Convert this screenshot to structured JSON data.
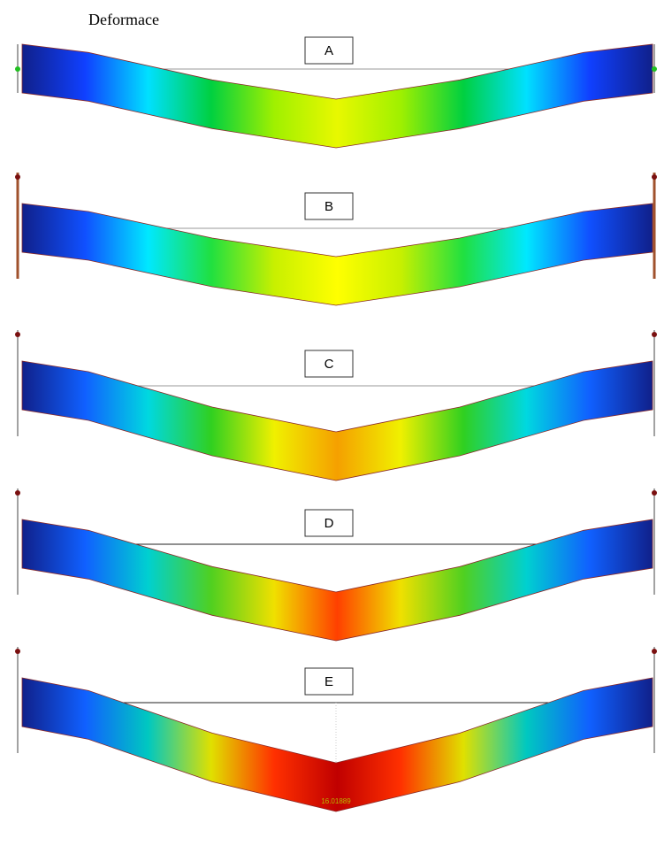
{
  "title": "Deformace",
  "panels": [
    {
      "label": "A"
    },
    {
      "label": "B"
    },
    {
      "label": "C"
    },
    {
      "label": "D"
    },
    {
      "label": "E",
      "max_value": "16.01889"
    }
  ]
}
